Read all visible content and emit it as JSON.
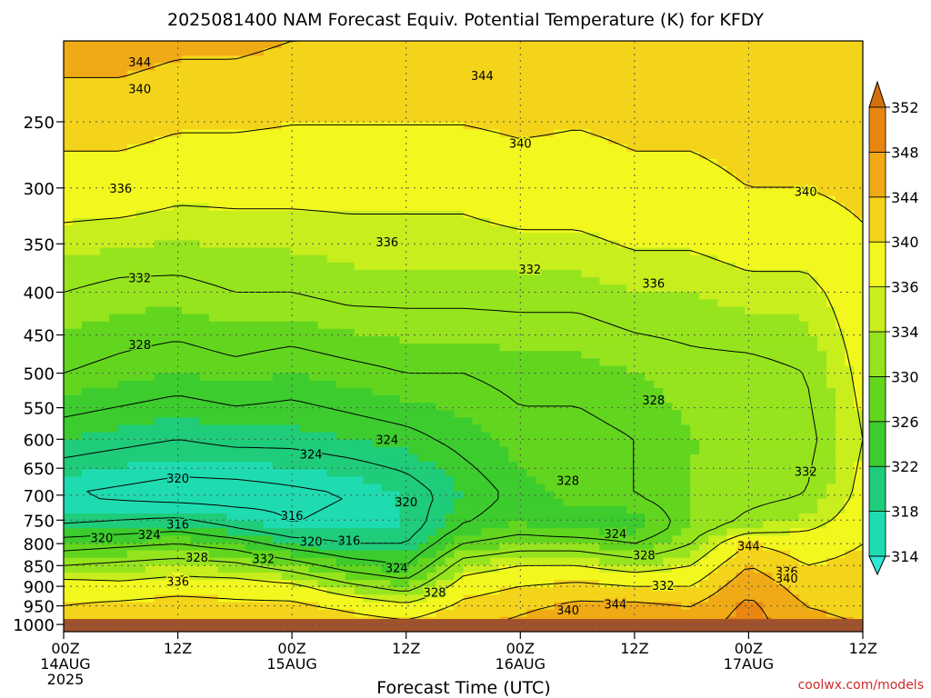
{
  "chart_data": {
    "type": "heatmap",
    "title": "2025081400 NAM Forecast Equiv. Potential Temperature (K) for KFDY",
    "xlabel": "Forecast Time (UTC)",
    "ylabel": "",
    "credit": "coolwx.com/models",
    "x_ticks": [
      {
        "hour": 0,
        "line1": "00Z",
        "line2": "14AUG",
        "line3": "2025"
      },
      {
        "hour": 12,
        "line1": "12Z",
        "line2": "",
        "line3": ""
      },
      {
        "hour": 24,
        "line1": "00Z",
        "line2": "15AUG",
        "line3": ""
      },
      {
        "hour": 36,
        "line1": "12Z",
        "line2": "",
        "line3": ""
      },
      {
        "hour": 48,
        "line1": "00Z",
        "line2": "16AUG",
        "line3": ""
      },
      {
        "hour": 60,
        "line1": "12Z",
        "line2": "",
        "line3": ""
      },
      {
        "hour": 72,
        "line1": "00Z",
        "line2": "17AUG",
        "line3": ""
      },
      {
        "hour": 84,
        "line1": "12Z",
        "line2": "",
        "line3": ""
      }
    ],
    "xlim": [
      0,
      84
    ],
    "y_ticks": [
      250,
      300,
      350,
      400,
      450,
      500,
      550,
      600,
      650,
      700,
      750,
      800,
      850,
      900,
      950,
      1000
    ],
    "ylim": [
      200,
      1020
    ],
    "y_scale": "log",
    "y_inverted": true,
    "grid": true,
    "colorbar": {
      "levels": [
        314,
        318,
        322,
        326,
        330,
        334,
        336,
        340,
        344,
        348,
        352
      ],
      "colors": [
        "#2ee8d8",
        "#1edcb0",
        "#1ecc7a",
        "#3ccc2e",
        "#62d61e",
        "#96e41e",
        "#c8ee1e",
        "#f2f81e",
        "#f4d41a",
        "#f0aa16",
        "#e88610",
        "#d4700c"
      ]
    },
    "ground_color": "#a0522d",
    "ground_below_pressure": 985,
    "contour_interval": 4,
    "profiles": [
      {
        "hour": 0,
        "values": [
          [
            200,
            346
          ],
          [
            300,
            338
          ],
          [
            400,
            332
          ],
          [
            500,
            328
          ],
          [
            600,
            322
          ],
          [
            700,
            316
          ],
          [
            760,
            320
          ],
          [
            800,
            326
          ],
          [
            850,
            332
          ],
          [
            900,
            338
          ],
          [
            950,
            340
          ],
          [
            1000,
            342
          ]
        ]
      },
      {
        "hour": 6,
        "values": [
          [
            200,
            346
          ],
          [
            300,
            338
          ],
          [
            400,
            331
          ],
          [
            500,
            327
          ],
          [
            600,
            321
          ],
          [
            700,
            315
          ],
          [
            760,
            321
          ],
          [
            800,
            327
          ],
          [
            850,
            333
          ],
          [
            900,
            337
          ],
          [
            950,
            341
          ],
          [
            1000,
            343
          ]
        ]
      },
      {
        "hour": 12,
        "values": [
          [
            200,
            345
          ],
          [
            300,
            337
          ],
          [
            400,
            331
          ],
          [
            500,
            326
          ],
          [
            600,
            320
          ],
          [
            700,
            314
          ],
          [
            760,
            322
          ],
          [
            800,
            328
          ],
          [
            850,
            334
          ],
          [
            900,
            338
          ],
          [
            950,
            342
          ],
          [
            1000,
            344
          ]
        ]
      },
      {
        "hour": 18,
        "values": [
          [
            200,
            345
          ],
          [
            300,
            337
          ],
          [
            400,
            332
          ],
          [
            500,
            327
          ],
          [
            600,
            321
          ],
          [
            700,
            314
          ],
          [
            760,
            319
          ],
          [
            800,
            326
          ],
          [
            850,
            333
          ],
          [
            900,
            338
          ],
          [
            950,
            341
          ],
          [
            1000,
            343
          ]
        ]
      },
      {
        "hour": 24,
        "values": [
          [
            200,
            344
          ],
          [
            300,
            337
          ],
          [
            400,
            332
          ],
          [
            500,
            326
          ],
          [
            600,
            321
          ],
          [
            700,
            315
          ],
          [
            760,
            316
          ],
          [
            800,
            322
          ],
          [
            850,
            330
          ],
          [
            900,
            337
          ],
          [
            950,
            341
          ],
          [
            1000,
            343
          ]
        ]
      },
      {
        "hour": 30,
        "values": [
          [
            200,
            344
          ],
          [
            300,
            337
          ],
          [
            400,
            333
          ],
          [
            500,
            327
          ],
          [
            600,
            322
          ],
          [
            700,
            316
          ],
          [
            760,
            317
          ],
          [
            800,
            320
          ],
          [
            850,
            326
          ],
          [
            900,
            333
          ],
          [
            950,
            339
          ],
          [
            1000,
            342
          ]
        ]
      },
      {
        "hour": 36,
        "values": [
          [
            200,
            344
          ],
          [
            300,
            337
          ],
          [
            400,
            333
          ],
          [
            500,
            328
          ],
          [
            600,
            323
          ],
          [
            700,
            318
          ],
          [
            760,
            318
          ],
          [
            800,
            320
          ],
          [
            850,
            324
          ],
          [
            900,
            330
          ],
          [
            950,
            337
          ],
          [
            1000,
            341
          ]
        ]
      },
      {
        "hour": 42,
        "values": [
          [
            200,
            344
          ],
          [
            300,
            337
          ],
          [
            400,
            333
          ],
          [
            500,
            328
          ],
          [
            600,
            325
          ],
          [
            700,
            322
          ],
          [
            760,
            324
          ],
          [
            800,
            328
          ],
          [
            850,
            334
          ],
          [
            900,
            338
          ],
          [
            950,
            341
          ],
          [
            1000,
            343
          ]
        ]
      },
      {
        "hour": 48,
        "values": [
          [
            200,
            344
          ],
          [
            300,
            338
          ],
          [
            400,
            333
          ],
          [
            500,
            329
          ],
          [
            600,
            327
          ],
          [
            700,
            325
          ],
          [
            760,
            326
          ],
          [
            800,
            330
          ],
          [
            850,
            336
          ],
          [
            900,
            340
          ],
          [
            950,
            343
          ],
          [
            1000,
            345
          ]
        ]
      },
      {
        "hour": 54,
        "values": [
          [
            200,
            343
          ],
          [
            300,
            338
          ],
          [
            400,
            333
          ],
          [
            500,
            329
          ],
          [
            600,
            327
          ],
          [
            700,
            327
          ],
          [
            760,
            324
          ],
          [
            800,
            330
          ],
          [
            850,
            336
          ],
          [
            900,
            341
          ],
          [
            950,
            345
          ],
          [
            1000,
            347
          ]
        ]
      },
      {
        "hour": 60,
        "values": [
          [
            200,
            343
          ],
          [
            300,
            339
          ],
          [
            400,
            334
          ],
          [
            500,
            330
          ],
          [
            600,
            328
          ],
          [
            700,
            328
          ],
          [
            760,
            324
          ],
          [
            800,
            328
          ],
          [
            850,
            334
          ],
          [
            900,
            340
          ],
          [
            950,
            345
          ],
          [
            1000,
            347
          ]
        ]
      },
      {
        "hour": 66,
        "values": [
          [
            200,
            343
          ],
          [
            300,
            339
          ],
          [
            400,
            334
          ],
          [
            500,
            331
          ],
          [
            600,
            330
          ],
          [
            700,
            330
          ],
          [
            760,
            330
          ],
          [
            800,
            332
          ],
          [
            850,
            336
          ],
          [
            900,
            340
          ],
          [
            950,
            344
          ],
          [
            1000,
            346
          ]
        ]
      },
      {
        "hour": 72,
        "values": [
          [
            200,
            343
          ],
          [
            300,
            340
          ],
          [
            400,
            335
          ],
          [
            500,
            331
          ],
          [
            600,
            330
          ],
          [
            700,
            331
          ],
          [
            760,
            333
          ],
          [
            800,
            340
          ],
          [
            850,
            344
          ],
          [
            900,
            347
          ],
          [
            950,
            349
          ],
          [
            1000,
            350
          ]
        ]
      },
      {
        "hour": 78,
        "values": [
          [
            200,
            343
          ],
          [
            300,
            340
          ],
          [
            400,
            335
          ],
          [
            500,
            332
          ],
          [
            600,
            331
          ],
          [
            700,
            332
          ],
          [
            760,
            335
          ],
          [
            800,
            338
          ],
          [
            850,
            340
          ],
          [
            900,
            342
          ],
          [
            950,
            344
          ],
          [
            1000,
            345
          ]
        ]
      },
      {
        "hour": 84,
        "values": [
          [
            200,
            344
          ],
          [
            300,
            341
          ],
          [
            400,
            338
          ],
          [
            500,
            337
          ],
          [
            600,
            336
          ],
          [
            700,
            337
          ],
          [
            760,
            338
          ],
          [
            800,
            340
          ],
          [
            850,
            341
          ],
          [
            900,
            342
          ],
          [
            950,
            343
          ],
          [
            1000,
            344
          ]
        ]
      }
    ],
    "contour_labels": [
      {
        "hour": 8,
        "pressure": 212,
        "value": "344"
      },
      {
        "hour": 8,
        "pressure": 228,
        "value": "340"
      },
      {
        "hour": 44,
        "pressure": 220,
        "value": "344"
      },
      {
        "hour": 48,
        "pressure": 265,
        "value": "340"
      },
      {
        "hour": 78,
        "pressure": 303,
        "value": "340"
      },
      {
        "hour": 6,
        "pressure": 300,
        "value": "336"
      },
      {
        "hour": 34,
        "pressure": 348,
        "value": "336"
      },
      {
        "hour": 62,
        "pressure": 390,
        "value": "336"
      },
      {
        "hour": 8,
        "pressure": 384,
        "value": "332"
      },
      {
        "hour": 49,
        "pressure": 375,
        "value": "332"
      },
      {
        "hour": 8,
        "pressure": 462,
        "value": "328"
      },
      {
        "hour": 62,
        "pressure": 538,
        "value": "328"
      },
      {
        "hour": 53,
        "pressure": 672,
        "value": "328"
      },
      {
        "hour": 34,
        "pressure": 600,
        "value": "324"
      },
      {
        "hour": 26,
        "pressure": 625,
        "value": "324"
      },
      {
        "hour": 12,
        "pressure": 668,
        "value": "320"
      },
      {
        "hour": 36,
        "pressure": 713,
        "value": "320"
      },
      {
        "hour": 24,
        "pressure": 740,
        "value": "316"
      },
      {
        "hour": 12,
        "pressure": 758,
        "value": "316"
      },
      {
        "hour": 9,
        "pressure": 780,
        "value": "324"
      },
      {
        "hour": 4,
        "pressure": 787,
        "value": "320"
      },
      {
        "hour": 26,
        "pressure": 795,
        "value": "320"
      },
      {
        "hour": 30,
        "pressure": 793,
        "value": "316"
      },
      {
        "hour": 58,
        "pressure": 778,
        "value": "324"
      },
      {
        "hour": 14,
        "pressure": 830,
        "value": "328"
      },
      {
        "hour": 21,
        "pressure": 834,
        "value": "332"
      },
      {
        "hour": 35,
        "pressure": 855,
        "value": "324"
      },
      {
        "hour": 39,
        "pressure": 915,
        "value": "328"
      },
      {
        "hour": 61,
        "pressure": 825,
        "value": "328"
      },
      {
        "hour": 63,
        "pressure": 898,
        "value": "332"
      },
      {
        "hour": 12,
        "pressure": 888,
        "value": "336"
      },
      {
        "hour": 76,
        "pressure": 863,
        "value": "336"
      },
      {
        "hour": 76,
        "pressure": 880,
        "value": "340"
      },
      {
        "hour": 72,
        "pressure": 805,
        "value": "344"
      },
      {
        "hour": 53,
        "pressure": 960,
        "value": "340"
      },
      {
        "hour": 58,
        "pressure": 945,
        "value": "344"
      },
      {
        "hour": 78,
        "pressure": 655,
        "value": "332"
      }
    ]
  }
}
